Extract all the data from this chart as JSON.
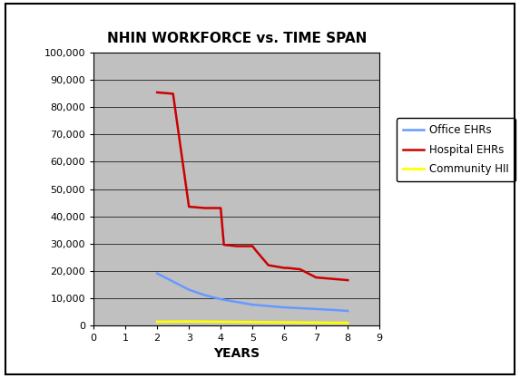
{
  "title": "NHIN WORKFORCE vs. TIME SPAN",
  "xlabel": "YEARS",
  "xlim": [
    0,
    9
  ],
  "ylim": [
    0,
    100000
  ],
  "yticks": [
    0,
    10000,
    20000,
    30000,
    40000,
    50000,
    60000,
    70000,
    80000,
    90000,
    100000
  ],
  "xticks": [
    0,
    1,
    2,
    3,
    4,
    5,
    6,
    7,
    8,
    9
  ],
  "office_x": [
    2,
    2.5,
    3,
    3.5,
    4,
    4.5,
    5,
    5.5,
    6,
    6.5,
    7,
    7.5,
    8
  ],
  "office_y": [
    19000,
    16000,
    13000,
    11000,
    9500,
    8500,
    7500,
    7000,
    6500,
    6200,
    5900,
    5600,
    5200
  ],
  "hospital_x": [
    2,
    2.5,
    3,
    3.5,
    4,
    4.1,
    4.5,
    5,
    5.1,
    5.5,
    6,
    6.1,
    6.5,
    7,
    7.5,
    8
  ],
  "hospital_y": [
    85500,
    85000,
    43500,
    43000,
    43000,
    29500,
    29000,
    29000,
    27500,
    22000,
    21000,
    21000,
    20500,
    17500,
    17000,
    16500
  ],
  "community_x": [
    2,
    3,
    4,
    5,
    6,
    7,
    8
  ],
  "community_y": [
    1200,
    1300,
    1200,
    1100,
    1000,
    900,
    800
  ],
  "office_color": "#6699FF",
  "hospital_color": "#CC0000",
  "community_color": "#FFFF00",
  "plot_bg_color": "#C0C0C0",
  "fig_bg_color": "#FFFFFF",
  "legend_labels": [
    "Office EHRs",
    "Hospital EHRs",
    "Community HII"
  ],
  "title_fontsize": 11,
  "axis_label_fontsize": 10,
  "tick_fontsize": 8
}
